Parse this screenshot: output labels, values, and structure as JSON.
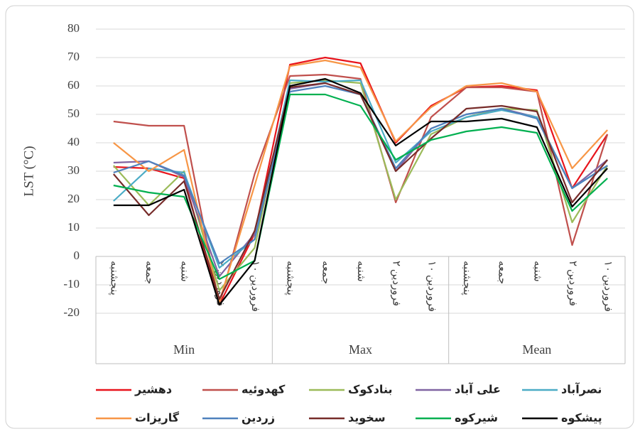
{
  "chart_data": {
    "type": "line",
    "y_label": "LST (°C)",
    "groups": [
      "Min",
      "Max",
      "Mean"
    ],
    "categories": [
      "پنجشنبه",
      "جمعه",
      "شنبه",
      "۲ فروردین",
      "۱۰ فروردین",
      "پنجشنبه",
      "جمعه",
      "شنبه",
      "۲ فروردین",
      "۱۰ فروردین",
      "پنجشنبه",
      "جمعه",
      "شنبه",
      "۲ فروردین",
      "۱۰ فروردین"
    ],
    "ylim": [
      -20,
      80
    ],
    "yticks": [
      -20,
      -10,
      0,
      10,
      20,
      30,
      40,
      50,
      60,
      70,
      80
    ],
    "grid": true,
    "legend": "bottom",
    "series": [
      {
        "name": "دهشیر",
        "color": "#e8141c",
        "values": [
          31.5,
          31,
          27.5,
          -17,
          8,
          67.5,
          70,
          68,
          40,
          53,
          59.5,
          60,
          58.5,
          24,
          43
        ]
      },
      {
        "name": "کهدوئیه",
        "color": "#c0504d",
        "values": [
          47.5,
          46,
          46,
          -17,
          29,
          63.5,
          64,
          62.5,
          19,
          49,
          59.5,
          59.5,
          58,
          4,
          43
        ]
      },
      {
        "name": "بنادکوک",
        "color": "#9bbb59",
        "values": [
          32,
          18,
          30,
          -12,
          3,
          61,
          62,
          61,
          20,
          43,
          49,
          52,
          51.5,
          12,
          32
        ]
      },
      {
        "name": "علی آباد",
        "color": "#8064a2",
        "values": [
          33,
          33.5,
          28,
          -7,
          8,
          59,
          61,
          57,
          30,
          45,
          50,
          52,
          49,
          24,
          34
        ]
      },
      {
        "name": "نصرآباد",
        "color": "#4bacc6",
        "values": [
          19.5,
          31,
          29.5,
          -4,
          6,
          62,
          61.5,
          62,
          33,
          44,
          49,
          51.5,
          49,
          24,
          32
        ]
      },
      {
        "name": "گاریزات",
        "color": "#f79646",
        "values": [
          40,
          30,
          37.5,
          -16,
          25,
          67,
          69,
          66.5,
          40.5,
          52.5,
          60,
          61,
          58,
          31,
          44.5
        ]
      },
      {
        "name": "زردین",
        "color": "#4f81bd",
        "values": [
          29.5,
          33.5,
          28.5,
          -2.5,
          6,
          58,
          60,
          57,
          31,
          45,
          50,
          52,
          48.5,
          24,
          32
        ]
      },
      {
        "name": "سخوید",
        "color": "#772c2a",
        "values": [
          29,
          14.5,
          26.5,
          -15,
          9,
          59.5,
          61,
          57,
          30,
          41.5,
          52,
          53,
          51,
          19,
          34
        ]
      },
      {
        "name": "شیرکوه",
        "color": "#00b050",
        "values": [
          25,
          22.5,
          21,
          -8,
          -1.5,
          57,
          57,
          53,
          34,
          41,
          44,
          45.5,
          43.5,
          16,
          27.5
        ]
      },
      {
        "name": "پیشکوه",
        "color": "#000000",
        "values": [
          18,
          18,
          23.5,
          -17,
          -1.5,
          60,
          62.5,
          57.5,
          39,
          47.5,
          47.5,
          48.5,
          45.5,
          17.5,
          31
        ]
      }
    ]
  }
}
